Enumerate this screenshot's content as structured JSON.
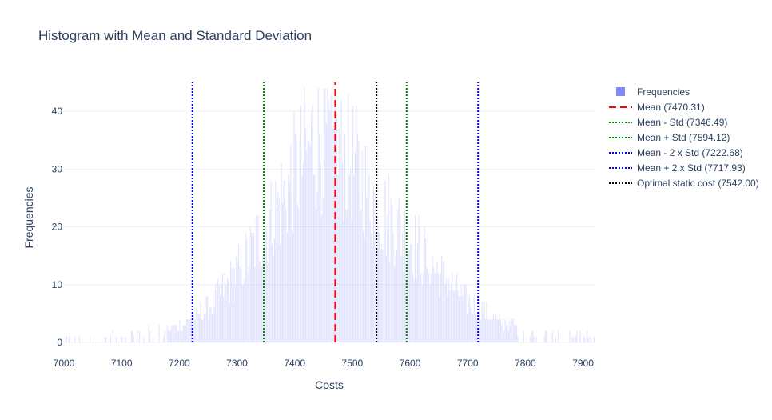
{
  "chart_data": {
    "type": "bar",
    "title": "Histogram with Mean and Standard Deviation",
    "xlabel": "Costs",
    "ylabel": "Frequencies",
    "xlim": [
      7000,
      7920
    ],
    "ylim": [
      0,
      45
    ],
    "x_ticks": [
      7000,
      7100,
      7200,
      7300,
      7400,
      7500,
      7600,
      7700,
      7800,
      7900
    ],
    "y_ticks": [
      0,
      10,
      20,
      30,
      40
    ],
    "grid": true,
    "legend_position": "top-right",
    "histogram": {
      "name": "Frequencies",
      "color": "#636efa",
      "bin_width": 2,
      "profile_x": [
        7000,
        7100,
        7150,
        7200,
        7250,
        7300,
        7350,
        7400,
        7430,
        7450,
        7470,
        7500,
        7550,
        7600,
        7650,
        7700,
        7750,
        7800,
        7850,
        7920
      ],
      "profile_y": [
        0.3,
        0.8,
        1.5,
        3,
        6,
        12,
        20,
        29,
        35,
        36,
        33,
        31,
        23,
        18,
        12,
        7,
        4,
        2,
        1,
        0.3
      ]
    },
    "vlines": [
      {
        "name": "Mean (7470.31)",
        "value": 7470.31,
        "color": "#ff0000",
        "dash": "dash"
      },
      {
        "name": "Mean - Std (7346.49)",
        "value": 7346.49,
        "color": "#008000",
        "dash": "dot"
      },
      {
        "name": "Mean + Std (7594.12)",
        "value": 7594.12,
        "color": "#008000",
        "dash": "dot"
      },
      {
        "name": "Mean - 2 x Std (7222.68)",
        "value": 7222.68,
        "color": "#0000ff",
        "dash": "dot"
      },
      {
        "name": "Mean + 2 x Std (7717.93)",
        "value": 7717.93,
        "color": "#0000ff",
        "dash": "dot"
      },
      {
        "name": "Optimal static cost (7542.00)",
        "value": 7542.0,
        "color": "#000000",
        "dash": "dot"
      }
    ],
    "vline_top": 45
  }
}
